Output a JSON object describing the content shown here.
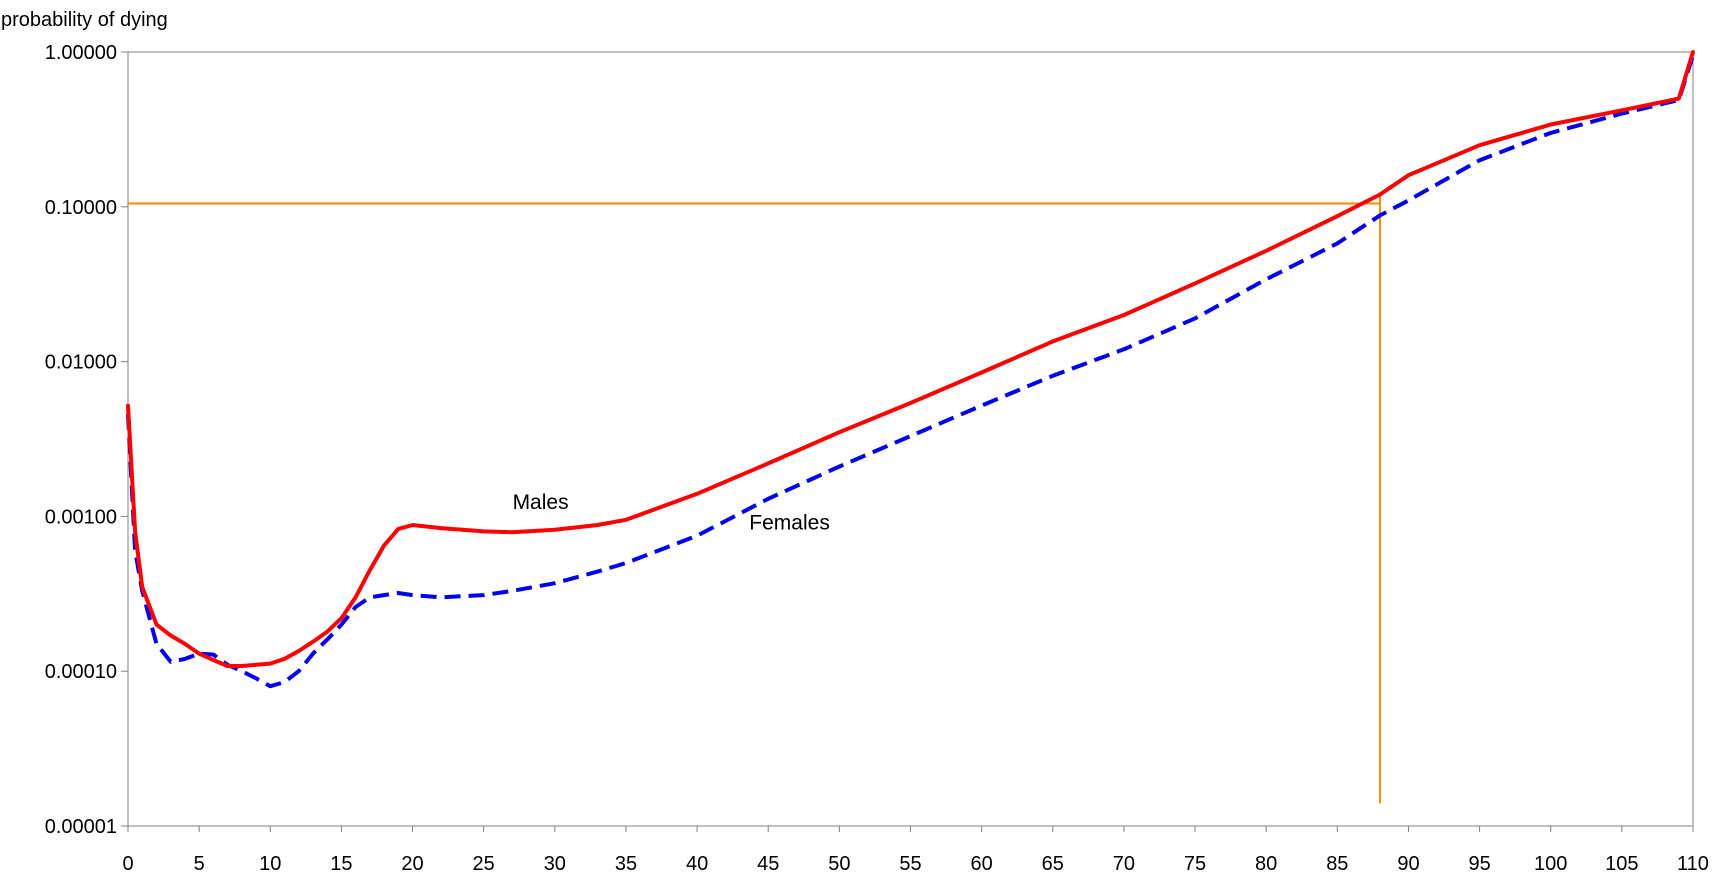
{
  "chart_data": {
    "type": "line",
    "title": "",
    "ylabel": "probability of dying",
    "xlabel": "",
    "yscale": "log",
    "xlim": [
      0,
      110
    ],
    "ylim": [
      1e-05,
      1.0
    ],
    "yticks": [
      {
        "value": 1e-05,
        "label": "0.00001"
      },
      {
        "value": 0.0001,
        "label": "0.00010"
      },
      {
        "value": 0.001,
        "label": "0.00100"
      },
      {
        "value": 0.01,
        "label": "0.01000"
      },
      {
        "value": 0.1,
        "label": "0.10000"
      },
      {
        "value": 1.0,
        "label": "1.00000"
      }
    ],
    "xticks": [
      0,
      5,
      10,
      15,
      20,
      25,
      30,
      35,
      40,
      45,
      50,
      55,
      60,
      65,
      70,
      75,
      80,
      85,
      90,
      95,
      100,
      105,
      110
    ],
    "grid": false,
    "legend": "inline labels",
    "series": [
      {
        "name": "Males",
        "color": "#ff0000",
        "style": "solid",
        "x": [
          0,
          0.5,
          1,
          2,
          3,
          4,
          5,
          6,
          7,
          8,
          9,
          10,
          11,
          12,
          13,
          14,
          15,
          16,
          17,
          18,
          19,
          20,
          22,
          25,
          27,
          30,
          33,
          35,
          40,
          45,
          50,
          55,
          60,
          65,
          70,
          75,
          80,
          85,
          88,
          90,
          95,
          100,
          105,
          109,
          110
        ],
        "y": [
          0.0052,
          0.0008,
          0.00035,
          0.0002,
          0.00017,
          0.00015,
          0.00013,
          0.000118,
          0.000108,
          0.000108,
          0.00011,
          0.000112,
          0.00012,
          0.000135,
          0.000155,
          0.00018,
          0.00022,
          0.0003,
          0.00045,
          0.00065,
          0.00083,
          0.00088,
          0.00084,
          0.0008,
          0.00079,
          0.00082,
          0.00088,
          0.00095,
          0.0014,
          0.0022,
          0.0035,
          0.0054,
          0.0085,
          0.0135,
          0.02,
          0.032,
          0.052,
          0.087,
          0.12,
          0.16,
          0.25,
          0.34,
          0.42,
          0.5,
          1.0
        ]
      },
      {
        "name": "Females",
        "color": "#0000ee",
        "style": "dashed",
        "x": [
          0,
          0.5,
          1,
          2,
          3,
          4,
          5,
          6,
          7,
          8,
          9,
          10,
          11,
          12,
          13,
          14,
          15,
          16,
          17,
          18,
          19,
          20,
          22,
          25,
          27,
          30,
          33,
          35,
          40,
          45,
          50,
          55,
          60,
          65,
          70,
          75,
          80,
          85,
          88,
          90,
          95,
          100,
          105,
          109,
          110
        ],
        "y": [
          0.0046,
          0.0006,
          0.00033,
          0.00015,
          0.000115,
          0.00012,
          0.00013,
          0.000128,
          0.00011,
          0.0001,
          9e-05,
          8e-05,
          8.5e-05,
          0.0001,
          0.00013,
          0.00016,
          0.0002,
          0.00026,
          0.0003,
          0.00031,
          0.00032,
          0.00031,
          0.0003,
          0.00031,
          0.00033,
          0.00037,
          0.00044,
          0.0005,
          0.00075,
          0.0013,
          0.0021,
          0.0033,
          0.0052,
          0.0081,
          0.012,
          0.019,
          0.034,
          0.058,
          0.088,
          0.11,
          0.2,
          0.3,
          0.4,
          0.49,
          0.95
        ]
      }
    ],
    "reference_lines": [
      {
        "type": "horizontal",
        "y": 0.105,
        "x_from": 0,
        "x_to": 88,
        "color": "#ff8c00"
      },
      {
        "type": "vertical",
        "x": 88,
        "y_from": 1.4e-05,
        "y_to": 0.12,
        "color": "#ff8c00"
      }
    ],
    "annotations": [
      {
        "text": "Males",
        "x": 29,
        "y": 0.00112
      },
      {
        "text": "Females",
        "x": 46.5,
        "y": 0.00082
      }
    ]
  }
}
